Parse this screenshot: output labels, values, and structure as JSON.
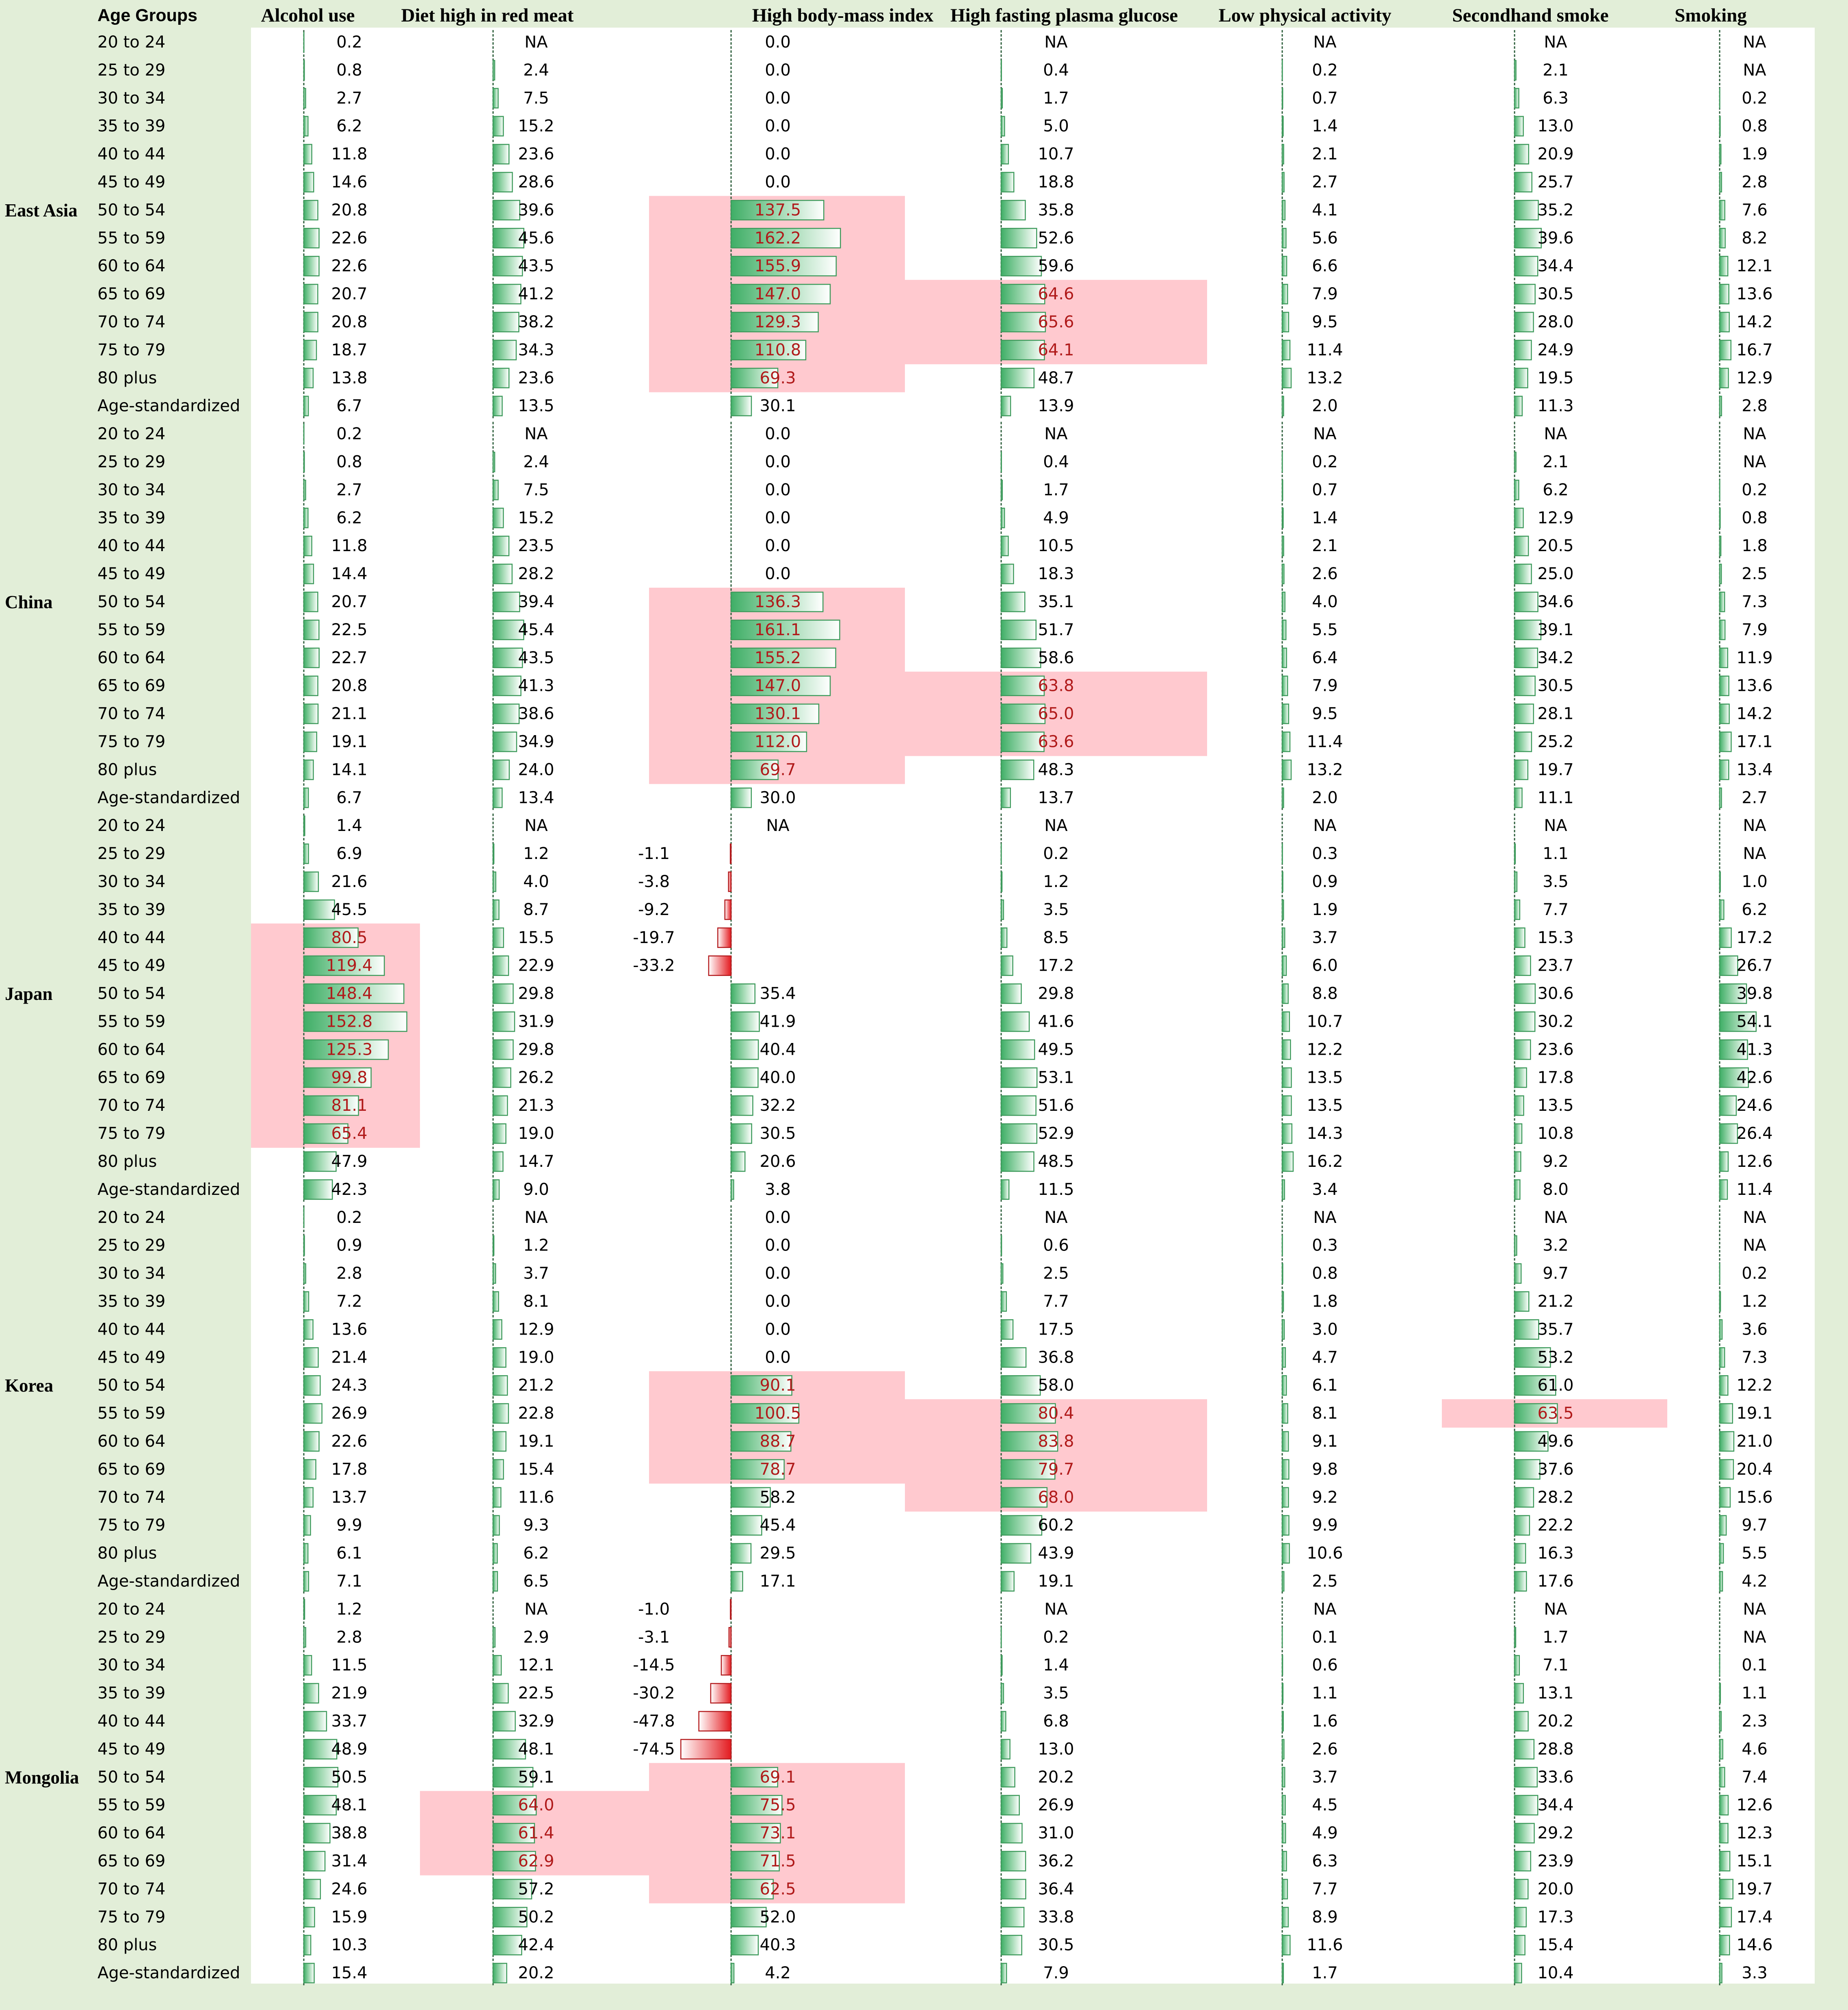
{
  "chart_data": {
    "type": "table",
    "age_groups_header": "Age Groups",
    "columns": [
      "Alcohol use",
      "Diet high in red meat",
      "High body-mass index",
      "High fasting plasma glucose",
      "Low physical activity",
      "Secondhand smoke",
      "Smoking"
    ],
    "age_groups": [
      "20 to 24",
      "25 to 29",
      "30 to 34",
      "35 to 39",
      "40 to 44",
      "45 to 49",
      "50 to 54",
      "55 to 59",
      "60 to 64",
      "65 to 69",
      "70 to 74",
      "75 to 79",
      "80 plus",
      "Age-standardized"
    ],
    "colors": {
      "background": "#e2eed8",
      "bar_green": "#4caf6e",
      "bar_red": "#e8262a",
      "highlight": "#ffc9cf",
      "highlight_text": "#b01a1a"
    },
    "regions": [
      {
        "name": "East Asia",
        "values": [
          [
            "0.2",
            "NA",
            "0.0",
            "NA",
            "NA",
            "NA",
            "NA"
          ],
          [
            "0.8",
            "2.4",
            "0.0",
            "0.4",
            "0.2",
            "2.1",
            "NA"
          ],
          [
            "2.7",
            "7.5",
            "0.0",
            "1.7",
            "0.7",
            "6.3",
            "0.2"
          ],
          [
            "6.2",
            "15.2",
            "0.0",
            "5.0",
            "1.4",
            "13.0",
            "0.8"
          ],
          [
            "11.8",
            "23.6",
            "0.0",
            "10.7",
            "2.1",
            "20.9",
            "1.9"
          ],
          [
            "14.6",
            "28.6",
            "0.0",
            "18.8",
            "2.7",
            "25.7",
            "2.8"
          ],
          [
            "20.8",
            "39.6",
            "137.5",
            "35.8",
            "4.1",
            "35.2",
            "7.6"
          ],
          [
            "22.6",
            "45.6",
            "162.2",
            "52.6",
            "5.6",
            "39.6",
            "8.2"
          ],
          [
            "22.6",
            "43.5",
            "155.9",
            "59.6",
            "6.6",
            "34.4",
            "12.1"
          ],
          [
            "20.7",
            "41.2",
            "147.0",
            "64.6",
            "7.9",
            "30.5",
            "13.6"
          ],
          [
            "20.8",
            "38.2",
            "129.3",
            "65.6",
            "9.5",
            "28.0",
            "14.2"
          ],
          [
            "18.7",
            "34.3",
            "110.8",
            "64.1",
            "11.4",
            "24.9",
            "16.7"
          ],
          [
            "13.8",
            "23.6",
            "69.3",
            "48.7",
            "13.2",
            "19.5",
            "12.9"
          ],
          [
            "6.7",
            "13.5",
            "30.1",
            "13.9",
            "2.0",
            "11.3",
            "2.8"
          ]
        ],
        "highlights": [
          [
            2,
            6,
            12
          ],
          [
            3,
            9,
            11
          ]
        ]
      },
      {
        "name": "China",
        "values": [
          [
            "0.2",
            "NA",
            "0.0",
            "NA",
            "NA",
            "NA",
            "NA"
          ],
          [
            "0.8",
            "2.4",
            "0.0",
            "0.4",
            "0.2",
            "2.1",
            "NA"
          ],
          [
            "2.7",
            "7.5",
            "0.0",
            "1.7",
            "0.7",
            "6.2",
            "0.2"
          ],
          [
            "6.2",
            "15.2",
            "0.0",
            "4.9",
            "1.4",
            "12.9",
            "0.8"
          ],
          [
            "11.8",
            "23.5",
            "0.0",
            "10.5",
            "2.1",
            "20.5",
            "1.8"
          ],
          [
            "14.4",
            "28.2",
            "0.0",
            "18.3",
            "2.6",
            "25.0",
            "2.5"
          ],
          [
            "20.7",
            "39.4",
            "136.3",
            "35.1",
            "4.0",
            "34.6",
            "7.3"
          ],
          [
            "22.5",
            "45.4",
            "161.1",
            "51.7",
            "5.5",
            "39.1",
            "7.9"
          ],
          [
            "22.7",
            "43.5",
            "155.2",
            "58.6",
            "6.4",
            "34.2",
            "11.9"
          ],
          [
            "20.8",
            "41.3",
            "147.0",
            "63.8",
            "7.9",
            "30.5",
            "13.6"
          ],
          [
            "21.1",
            "38.6",
            "130.1",
            "65.0",
            "9.5",
            "28.1",
            "14.2"
          ],
          [
            "19.1",
            "34.9",
            "112.0",
            "63.6",
            "11.4",
            "25.2",
            "17.1"
          ],
          [
            "14.1",
            "24.0",
            "69.7",
            "48.3",
            "13.2",
            "19.7",
            "13.4"
          ],
          [
            "6.7",
            "13.4",
            "30.0",
            "13.7",
            "2.0",
            "11.1",
            "2.7"
          ]
        ],
        "highlights": [
          [
            2,
            6,
            12
          ],
          [
            3,
            9,
            11
          ]
        ]
      },
      {
        "name": "Japan",
        "values": [
          [
            "1.4",
            "NA",
            "NA",
            "NA",
            "NA",
            "NA",
            "NA"
          ],
          [
            "6.9",
            "1.2",
            "-1.1",
            "0.2",
            "0.3",
            "1.1",
            "NA"
          ],
          [
            "21.6",
            "4.0",
            "-3.8",
            "1.2",
            "0.9",
            "3.5",
            "1.0"
          ],
          [
            "45.5",
            "8.7",
            "-9.2",
            "3.5",
            "1.9",
            "7.7",
            "6.2"
          ],
          [
            "80.5",
            "15.5",
            "-19.7",
            "8.5",
            "3.7",
            "15.3",
            "17.2"
          ],
          [
            "119.4",
            "22.9",
            "-33.2",
            "17.2",
            "6.0",
            "23.7",
            "26.7"
          ],
          [
            "148.4",
            "29.8",
            "35.4",
            "29.8",
            "8.8",
            "30.6",
            "39.8"
          ],
          [
            "152.8",
            "31.9",
            "41.9",
            "41.6",
            "10.7",
            "30.2",
            "54.1"
          ],
          [
            "125.3",
            "29.8",
            "40.4",
            "49.5",
            "12.2",
            "23.6",
            "41.3"
          ],
          [
            "99.8",
            "26.2",
            "40.0",
            "53.1",
            "13.5",
            "17.8",
            "42.6"
          ],
          [
            "81.1",
            "21.3",
            "32.2",
            "51.6",
            "13.5",
            "13.5",
            "24.6"
          ],
          [
            "65.4",
            "19.0",
            "30.5",
            "52.9",
            "14.3",
            "10.8",
            "26.4"
          ],
          [
            "47.9",
            "14.7",
            "20.6",
            "48.5",
            "16.2",
            "9.2",
            "12.6"
          ],
          [
            "42.3",
            "9.0",
            "3.8",
            "11.5",
            "3.4",
            "8.0",
            "11.4"
          ]
        ],
        "highlights": [
          [
            0,
            4,
            11
          ]
        ]
      },
      {
        "name": "Korea",
        "values": [
          [
            "0.2",
            "NA",
            "0.0",
            "NA",
            "NA",
            "NA",
            "NA"
          ],
          [
            "0.9",
            "1.2",
            "0.0",
            "0.6",
            "0.3",
            "3.2",
            "NA"
          ],
          [
            "2.8",
            "3.7",
            "0.0",
            "2.5",
            "0.8",
            "9.7",
            "0.2"
          ],
          [
            "7.2",
            "8.1",
            "0.0",
            "7.7",
            "1.8",
            "21.2",
            "1.2"
          ],
          [
            "13.6",
            "12.9",
            "0.0",
            "17.5",
            "3.0",
            "35.7",
            "3.6"
          ],
          [
            "21.4",
            "19.0",
            "0.0",
            "36.8",
            "4.7",
            "53.2",
            "7.3"
          ],
          [
            "24.3",
            "21.2",
            "90.1",
            "58.0",
            "6.1",
            "61.0",
            "12.2"
          ],
          [
            "26.9",
            "22.8",
            "100.5",
            "80.4",
            "8.1",
            "63.5",
            "19.1"
          ],
          [
            "22.6",
            "19.1",
            "88.7",
            "83.8",
            "9.1",
            "49.6",
            "21.0"
          ],
          [
            "17.8",
            "15.4",
            "78.7",
            "79.7",
            "9.8",
            "37.6",
            "20.4"
          ],
          [
            "13.7",
            "11.6",
            "58.2",
            "68.0",
            "9.2",
            "28.2",
            "15.6"
          ],
          [
            "9.9",
            "9.3",
            "45.4",
            "60.2",
            "9.9",
            "22.2",
            "9.7"
          ],
          [
            "6.1",
            "6.2",
            "29.5",
            "43.9",
            "10.6",
            "16.3",
            "5.5"
          ],
          [
            "7.1",
            "6.5",
            "17.1",
            "19.1",
            "2.5",
            "17.6",
            "4.2"
          ]
        ],
        "highlights": [
          [
            2,
            6,
            9
          ],
          [
            3,
            7,
            10
          ],
          [
            5,
            7,
            7
          ]
        ]
      },
      {
        "name": "Mongolia",
        "values": [
          [
            "1.2",
            "NA",
            "-1.0",
            "NA",
            "NA",
            "NA",
            "NA"
          ],
          [
            "2.8",
            "2.9",
            "-3.1",
            "0.2",
            "0.1",
            "1.7",
            "NA"
          ],
          [
            "11.5",
            "12.1",
            "-14.5",
            "1.4",
            "0.6",
            "7.1",
            "0.1"
          ],
          [
            "21.9",
            "22.5",
            "-30.2",
            "3.5",
            "1.1",
            "13.1",
            "1.1"
          ],
          [
            "33.7",
            "32.9",
            "-47.8",
            "6.8",
            "1.6",
            "20.2",
            "2.3"
          ],
          [
            "48.9",
            "48.1",
            "-74.5",
            "13.0",
            "2.6",
            "28.8",
            "4.6"
          ],
          [
            "50.5",
            "59.1",
            "69.1",
            "20.2",
            "3.7",
            "33.6",
            "7.4"
          ],
          [
            "48.1",
            "64.0",
            "75.5",
            "26.9",
            "4.5",
            "34.4",
            "12.6"
          ],
          [
            "38.8",
            "61.4",
            "73.1",
            "31.0",
            "4.9",
            "29.2",
            "12.3"
          ],
          [
            "31.4",
            "62.9",
            "71.5",
            "36.2",
            "6.3",
            "23.9",
            "15.1"
          ],
          [
            "24.6",
            "57.2",
            "62.5",
            "36.4",
            "7.7",
            "20.0",
            "19.7"
          ],
          [
            "15.9",
            "50.2",
            "52.0",
            "33.8",
            "8.9",
            "17.3",
            "17.4"
          ],
          [
            "10.3",
            "42.4",
            "40.3",
            "30.5",
            "11.6",
            "15.4",
            "14.6"
          ],
          [
            "15.4",
            "20.2",
            "4.2",
            "7.9",
            "1.7",
            "10.4",
            "3.3"
          ]
        ],
        "highlights": [
          [
            1,
            7,
            9
          ],
          [
            2,
            6,
            10
          ]
        ]
      }
    ]
  }
}
